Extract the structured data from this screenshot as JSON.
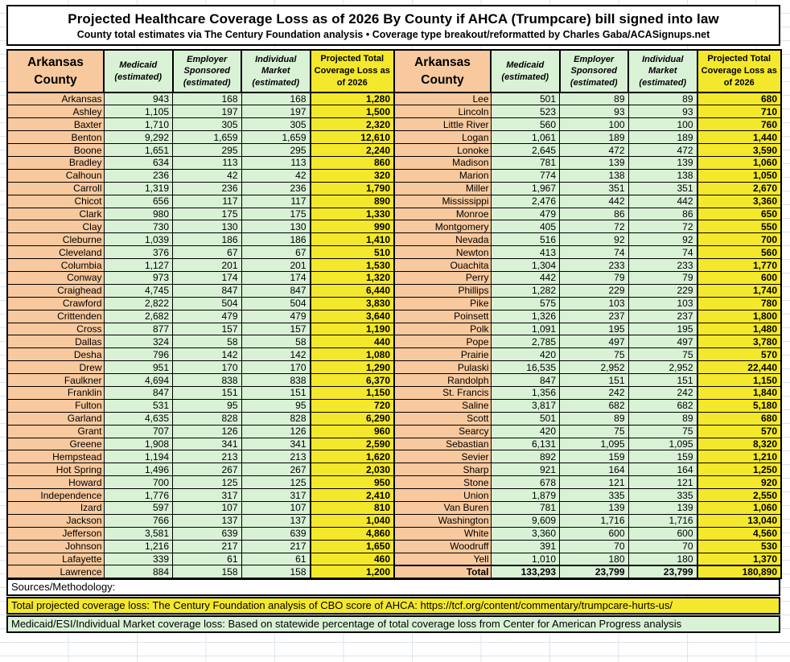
{
  "header": {
    "title": "Projected Healthcare Coverage Loss as of 2026 By County if AHCA (Trumpcare) bill signed into law",
    "subtitle": "County total estimates via The Century Foundation analysis • Coverage type breakout/reformatted by Charles Gaba/ACASignups.net"
  },
  "chart_data": {
    "type": "table",
    "columns": [
      "Arkansas County",
      "Medicaid (estimated)",
      "Employer Sponsored (estimated)",
      "Individual Market (estimated)",
      "Projected Total Coverage Loss as of 2026"
    ],
    "left_rows": [
      [
        "Arkansas",
        "943",
        "168",
        "168",
        "1,280"
      ],
      [
        "Ashley",
        "1,105",
        "197",
        "197",
        "1,500"
      ],
      [
        "Baxter",
        "1,710",
        "305",
        "305",
        "2,320"
      ],
      [
        "Benton",
        "9,292",
        "1,659",
        "1,659",
        "12,610"
      ],
      [
        "Boone",
        "1,651",
        "295",
        "295",
        "2,240"
      ],
      [
        "Bradley",
        "634",
        "113",
        "113",
        "860"
      ],
      [
        "Calhoun",
        "236",
        "42",
        "42",
        "320"
      ],
      [
        "Carroll",
        "1,319",
        "236",
        "236",
        "1,790"
      ],
      [
        "Chicot",
        "656",
        "117",
        "117",
        "890"
      ],
      [
        "Clark",
        "980",
        "175",
        "175",
        "1,330"
      ],
      [
        "Clay",
        "730",
        "130",
        "130",
        "990"
      ],
      [
        "Cleburne",
        "1,039",
        "186",
        "186",
        "1,410"
      ],
      [
        "Cleveland",
        "376",
        "67",
        "67",
        "510"
      ],
      [
        "Columbia",
        "1,127",
        "201",
        "201",
        "1,530"
      ],
      [
        "Conway",
        "973",
        "174",
        "174",
        "1,320"
      ],
      [
        "Craighead",
        "4,745",
        "847",
        "847",
        "6,440"
      ],
      [
        "Crawford",
        "2,822",
        "504",
        "504",
        "3,830"
      ],
      [
        "Crittenden",
        "2,682",
        "479",
        "479",
        "3,640"
      ],
      [
        "Cross",
        "877",
        "157",
        "157",
        "1,190"
      ],
      [
        "Dallas",
        "324",
        "58",
        "58",
        "440"
      ],
      [
        "Desha",
        "796",
        "142",
        "142",
        "1,080"
      ],
      [
        "Drew",
        "951",
        "170",
        "170",
        "1,290"
      ],
      [
        "Faulkner",
        "4,694",
        "838",
        "838",
        "6,370"
      ],
      [
        "Franklin",
        "847",
        "151",
        "151",
        "1,150"
      ],
      [
        "Fulton",
        "531",
        "95",
        "95",
        "720"
      ],
      [
        "Garland",
        "4,635",
        "828",
        "828",
        "6,290"
      ],
      [
        "Grant",
        "707",
        "126",
        "126",
        "960"
      ],
      [
        "Greene",
        "1,908",
        "341",
        "341",
        "2,590"
      ],
      [
        "Hempstead",
        "1,194",
        "213",
        "213",
        "1,620"
      ],
      [
        "Hot Spring",
        "1,496",
        "267",
        "267",
        "2,030"
      ],
      [
        "Howard",
        "700",
        "125",
        "125",
        "950"
      ],
      [
        "Independence",
        "1,776",
        "317",
        "317",
        "2,410"
      ],
      [
        "Izard",
        "597",
        "107",
        "107",
        "810"
      ],
      [
        "Jackson",
        "766",
        "137",
        "137",
        "1,040"
      ],
      [
        "Jefferson",
        "3,581",
        "639",
        "639",
        "4,860"
      ],
      [
        "Johnson",
        "1,216",
        "217",
        "217",
        "1,650"
      ],
      [
        "Lafayette",
        "339",
        "61",
        "61",
        "460"
      ],
      [
        "Lawrence",
        "884",
        "158",
        "158",
        "1,200"
      ]
    ],
    "right_rows": [
      [
        "Lee",
        "501",
        "89",
        "89",
        "680"
      ],
      [
        "Lincoln",
        "523",
        "93",
        "93",
        "710"
      ],
      [
        "Little River",
        "560",
        "100",
        "100",
        "760"
      ],
      [
        "Logan",
        "1,061",
        "189",
        "189",
        "1,440"
      ],
      [
        "Lonoke",
        "2,645",
        "472",
        "472",
        "3,590"
      ],
      [
        "Madison",
        "781",
        "139",
        "139",
        "1,060"
      ],
      [
        "Marion",
        "774",
        "138",
        "138",
        "1,050"
      ],
      [
        "Miller",
        "1,967",
        "351",
        "351",
        "2,670"
      ],
      [
        "Mississippi",
        "2,476",
        "442",
        "442",
        "3,360"
      ],
      [
        "Monroe",
        "479",
        "86",
        "86",
        "650"
      ],
      [
        "Montgomery",
        "405",
        "72",
        "72",
        "550"
      ],
      [
        "Nevada",
        "516",
        "92",
        "92",
        "700"
      ],
      [
        "Newton",
        "413",
        "74",
        "74",
        "560"
      ],
      [
        "Ouachita",
        "1,304",
        "233",
        "233",
        "1,770"
      ],
      [
        "Perry",
        "442",
        "79",
        "79",
        "600"
      ],
      [
        "Phillips",
        "1,282",
        "229",
        "229",
        "1,740"
      ],
      [
        "Pike",
        "575",
        "103",
        "103",
        "780"
      ],
      [
        "Poinsett",
        "1,326",
        "237",
        "237",
        "1,800"
      ],
      [
        "Polk",
        "1,091",
        "195",
        "195",
        "1,480"
      ],
      [
        "Pope",
        "2,785",
        "497",
        "497",
        "3,780"
      ],
      [
        "Prairie",
        "420",
        "75",
        "75",
        "570"
      ],
      [
        "Pulaski",
        "16,535",
        "2,952",
        "2,952",
        "22,440"
      ],
      [
        "Randolph",
        "847",
        "151",
        "151",
        "1,150"
      ],
      [
        "St. Francis",
        "1,356",
        "242",
        "242",
        "1,840"
      ],
      [
        "Saline",
        "3,817",
        "682",
        "682",
        "5,180"
      ],
      [
        "Scott",
        "501",
        "89",
        "89",
        "680"
      ],
      [
        "Searcy",
        "420",
        "75",
        "75",
        "570"
      ],
      [
        "Sebastian",
        "6,131",
        "1,095",
        "1,095",
        "8,320"
      ],
      [
        "Sevier",
        "892",
        "159",
        "159",
        "1,210"
      ],
      [
        "Sharp",
        "921",
        "164",
        "164",
        "1,250"
      ],
      [
        "Stone",
        "678",
        "121",
        "121",
        "920"
      ],
      [
        "Union",
        "1,879",
        "335",
        "335",
        "2,550"
      ],
      [
        "Van Buren",
        "781",
        "139",
        "139",
        "1,060"
      ],
      [
        "Washington",
        "9,609",
        "1,716",
        "1,716",
        "13,040"
      ],
      [
        "White",
        "3,360",
        "600",
        "600",
        "4,560"
      ],
      [
        "Woodruff",
        "391",
        "70",
        "70",
        "530"
      ],
      [
        "Yell",
        "1,010",
        "180",
        "180",
        "1,370"
      ],
      [
        "Total",
        "133,293",
        "23,799",
        "23,799",
        "180,890"
      ]
    ]
  },
  "footer": {
    "sources_label": "Sources/Methodology:",
    "total_note": "Total projected coverage loss: The Century Foundation analysis of CBO score of AHCA: https://tcf.org/content/commentary/trumpcare-hurts-us/",
    "breakout_note": "Medicaid/ESI/Individual Market coverage loss: Based on statewide percentage of total coverage loss from Center for American Progress analysis"
  },
  "colors": {
    "county_column_bg": "#f8c99e",
    "estimate_column_bg": "#d9f2d6",
    "total_column_bg": "#f4e82c",
    "grid_border": "#000000"
  }
}
